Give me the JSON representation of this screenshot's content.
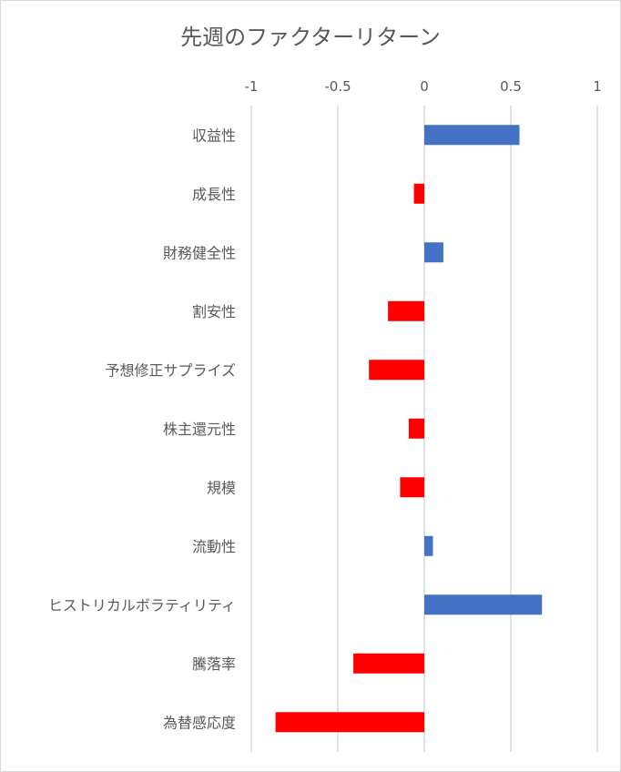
{
  "chart_data": {
    "type": "bar",
    "orientation": "horizontal",
    "title": "先週のファクターリターン",
    "xlim": [
      -1,
      1
    ],
    "x_ticks": [
      -1,
      -0.5,
      0,
      0.5,
      1
    ],
    "x_tick_labels": [
      "-1",
      "-0.5",
      "0",
      "0.5",
      "1"
    ],
    "x_axis_position": "top",
    "grid": true,
    "legend": "none",
    "categories": [
      "収益性",
      "成長性",
      "財務健全性",
      "割安性",
      "予想修正サプライズ",
      "株主還元性",
      "規模",
      "流動性",
      "ヒストリカルボラティリティ",
      "騰落率",
      "為替感応度"
    ],
    "values": [
      0.55,
      -0.06,
      0.11,
      -0.21,
      -0.32,
      -0.09,
      -0.14,
      0.05,
      0.68,
      -0.41,
      -0.86
    ],
    "colors": {
      "positive": "#4472C4",
      "negative": "#FF0000",
      "grid": "#d9d9d9",
      "text": "#595959"
    }
  }
}
